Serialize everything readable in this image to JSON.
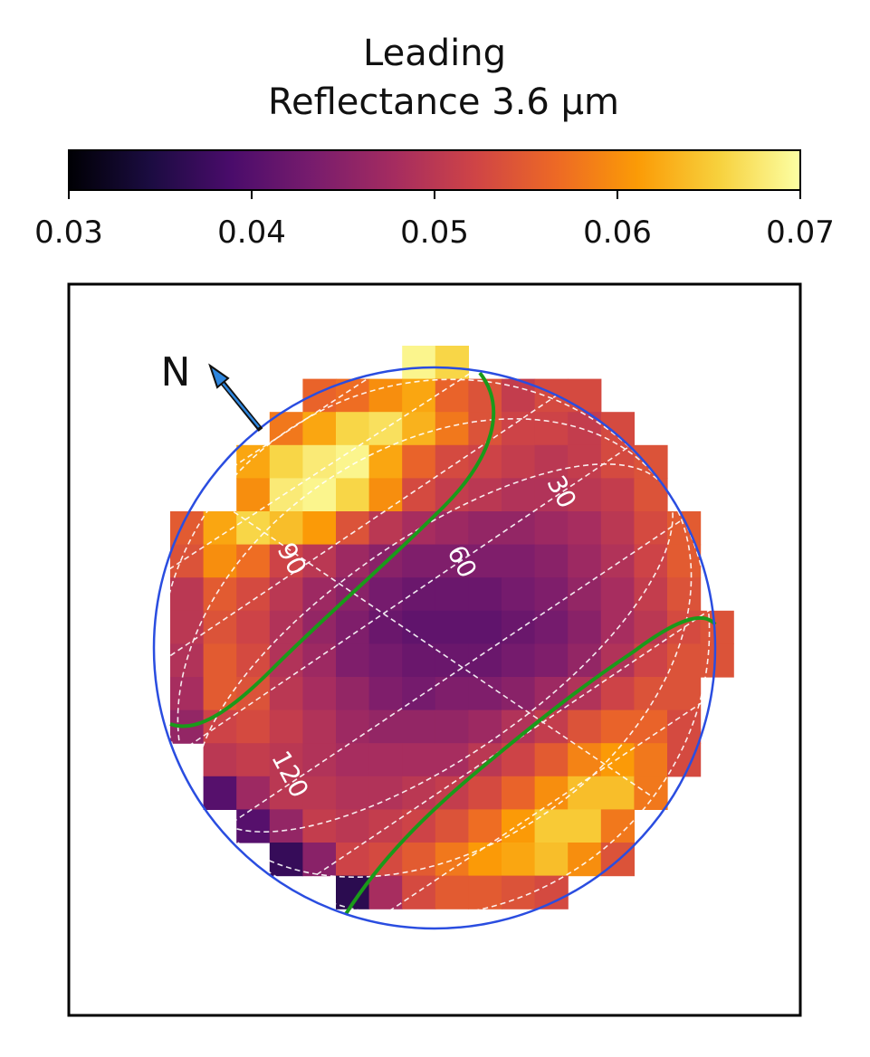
{
  "chart_data": {
    "type": "heatmap",
    "title": "Leading",
    "subtitle": "Reflectance 3.6 μm",
    "colorbar": {
      "colormap": "inferno",
      "min": 0.03,
      "max": 0.07,
      "ticks": [
        "0.03",
        "0.04",
        "0.05",
        "0.06",
        "0.07"
      ],
      "stops": [
        "#000004",
        "#1b0c41",
        "#4a0c6b",
        "#781c6d",
        "#a52c60",
        "#cf4446",
        "#ed6925",
        "#fb9b06",
        "#f7d13d",
        "#fcffa4"
      ]
    },
    "longitude_labels": [
      "30",
      "60",
      "90",
      "120"
    ],
    "north_label": "N",
    "grid": {
      "cols": 17,
      "rows": 17,
      "x0": 3,
      "y0": 2,
      "rows_data": [
        [
          null,
          null,
          null,
          null,
          null,
          null,
          null,
          0.069,
          0.066,
          null,
          null,
          null,
          null,
          null,
          null,
          null,
          null
        ],
        [
          null,
          null,
          null,
          null,
          0.056,
          0.057,
          0.06,
          0.062,
          0.056,
          0.054,
          0.051,
          0.053,
          0.053,
          null,
          null,
          null,
          null
        ],
        [
          null,
          null,
          null,
          0.058,
          0.062,
          0.066,
          0.067,
          0.063,
          0.058,
          0.054,
          0.052,
          0.052,
          0.051,
          0.053,
          null,
          null,
          null
        ],
        [
          null,
          null,
          0.062,
          0.066,
          0.068,
          0.069,
          0.062,
          0.056,
          0.053,
          0.052,
          0.051,
          0.05,
          0.051,
          0.053,
          0.054,
          null,
          null
        ],
        [
          null,
          null,
          0.06,
          0.068,
          0.069,
          0.066,
          0.06,
          0.053,
          0.051,
          0.05,
          0.049,
          0.049,
          0.05,
          0.051,
          0.054,
          null,
          null
        ],
        [
          0.055,
          0.062,
          0.066,
          0.064,
          0.061,
          0.054,
          0.05,
          0.048,
          0.047,
          0.046,
          0.046,
          0.047,
          0.048,
          0.05,
          0.053,
          0.055,
          null
        ],
        [
          0.054,
          0.06,
          0.057,
          0.052,
          0.05,
          0.047,
          0.045,
          0.044,
          0.044,
          0.044,
          0.044,
          0.045,
          0.047,
          0.049,
          0.052,
          0.055,
          null
        ],
        [
          0.05,
          0.055,
          0.053,
          0.05,
          0.047,
          0.045,
          0.043,
          0.042,
          0.042,
          0.042,
          0.043,
          0.044,
          0.046,
          0.048,
          0.051,
          0.054,
          null
        ],
        [
          0.05,
          0.054,
          0.052,
          0.049,
          0.046,
          0.044,
          0.042,
          0.041,
          0.041,
          0.041,
          0.042,
          0.043,
          0.045,
          0.048,
          0.05,
          0.053,
          0.054
        ],
        [
          0.049,
          0.055,
          0.053,
          0.049,
          0.047,
          0.044,
          0.043,
          0.042,
          0.042,
          0.042,
          0.043,
          0.044,
          0.046,
          0.049,
          0.052,
          0.054,
          0.054
        ],
        [
          0.048,
          0.055,
          0.054,
          0.05,
          0.048,
          0.046,
          0.044,
          0.043,
          0.044,
          0.044,
          0.045,
          0.047,
          0.049,
          0.052,
          0.054,
          0.054,
          null
        ],
        [
          0.046,
          0.052,
          0.053,
          0.051,
          0.049,
          0.047,
          0.046,
          0.046,
          0.046,
          0.047,
          0.049,
          0.051,
          0.054,
          0.056,
          0.056,
          0.053,
          null
        ],
        [
          null,
          0.05,
          0.051,
          0.05,
          0.049,
          0.048,
          0.048,
          0.048,
          0.048,
          0.05,
          0.052,
          0.055,
          0.059,
          0.061,
          0.058,
          0.053,
          null
        ],
        [
          null,
          0.04,
          0.047,
          0.05,
          0.05,
          0.049,
          0.049,
          0.05,
          0.051,
          0.053,
          0.056,
          0.06,
          0.064,
          0.064,
          0.058,
          null,
          null
        ],
        [
          null,
          null,
          0.04,
          0.046,
          0.051,
          0.05,
          0.051,
          0.052,
          0.054,
          0.057,
          0.061,
          0.065,
          0.065,
          0.058,
          null,
          null,
          null
        ],
        [
          null,
          null,
          null,
          0.037,
          0.045,
          0.052,
          0.053,
          0.055,
          0.058,
          0.061,
          0.062,
          0.064,
          0.06,
          0.054,
          null,
          null,
          null
        ],
        [
          null,
          null,
          null,
          null,
          null,
          0.036,
          0.048,
          0.053,
          0.055,
          0.055,
          0.054,
          0.053,
          null,
          null,
          null,
          null,
          null
        ]
      ]
    }
  }
}
